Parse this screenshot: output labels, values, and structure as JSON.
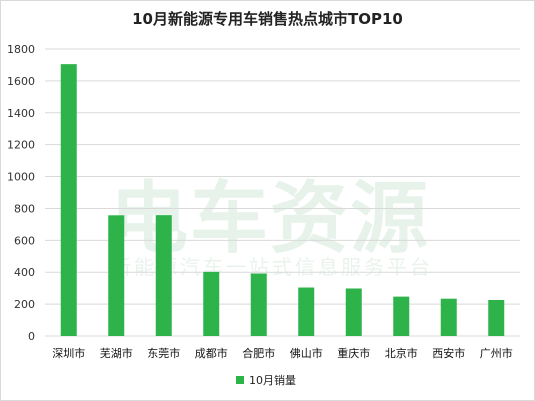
{
  "watermark": {
    "main": "电车资源",
    "sub": "新能源汽车一站式信息服务平台"
  },
  "colors": {
    "bar": "#2db34a",
    "grid": "#d9d9d9",
    "watermark": "#e6f2ea"
  },
  "chart_data": {
    "type": "bar",
    "title": "10月新能源专用车销售热点城市TOP10",
    "categories": [
      "深圳市",
      "芜湖市",
      "东莞市",
      "成都市",
      "合肥市",
      "佛山市",
      "重庆市",
      "北京市",
      "西安市",
      "广州市"
    ],
    "series": [
      {
        "name": "10月销量",
        "values": [
          1705,
          757,
          758,
          402,
          392,
          304,
          298,
          247,
          234,
          226
        ]
      }
    ],
    "yticks": [
      0,
      200,
      400,
      600,
      800,
      1000,
      1200,
      1400,
      1600,
      1800
    ],
    "ylim": [
      0,
      1800
    ],
    "grid": true,
    "legend": "bottom"
  }
}
